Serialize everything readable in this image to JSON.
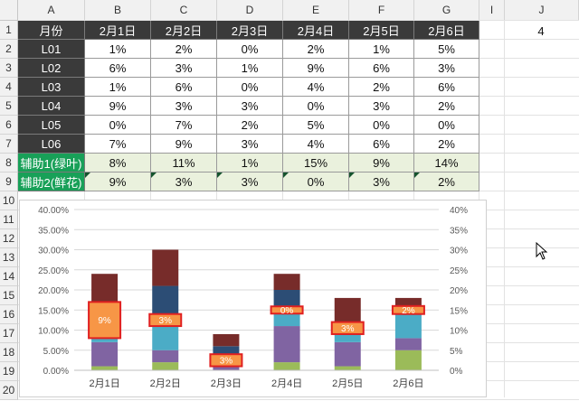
{
  "columns": [
    "A",
    "B",
    "C",
    "D",
    "E",
    "F",
    "G",
    "I",
    "J"
  ],
  "rows": [
    "1",
    "2",
    "3",
    "4",
    "5",
    "6",
    "7",
    "8",
    "9",
    "10",
    "11",
    "12",
    "13",
    "14",
    "15",
    "16",
    "17",
    "18",
    "19",
    "20"
  ],
  "table": {
    "header": [
      "月份",
      "2月1日",
      "2月2日",
      "2月3日",
      "2月4日",
      "2月5日",
      "2月6日"
    ],
    "data_rows": [
      [
        "L01",
        "1%",
        "2%",
        "0%",
        "2%",
        "1%",
        "5%"
      ],
      [
        "L02",
        "6%",
        "3%",
        "1%",
        "9%",
        "6%",
        "3%"
      ],
      [
        "L03",
        "1%",
        "6%",
        "0%",
        "4%",
        "2%",
        "6%"
      ],
      [
        "L04",
        "9%",
        "3%",
        "3%",
        "0%",
        "3%",
        "2%"
      ],
      [
        "L05",
        "0%",
        "7%",
        "2%",
        "5%",
        "0%",
        "0%"
      ],
      [
        "L06",
        "7%",
        "9%",
        "3%",
        "4%",
        "6%",
        "2%"
      ]
    ],
    "helper_rows": [
      [
        "辅助1(绿叶)",
        "8%",
        "11%",
        "1%",
        "15%",
        "9%",
        "14%"
      ],
      [
        "辅助2(鲜花)",
        "9%",
        "3%",
        "3%",
        "0%",
        "3%",
        "2%"
      ]
    ]
  },
  "j1_value": "4",
  "colors": {
    "L01": "#9bbb59",
    "L02": "#8064a2",
    "L03": "#4bacc6",
    "L04": "#1f497d",
    "L05": "#2c4d75",
    "L06": "#772c2a",
    "highlight_fill": "#f79646",
    "highlight_border": "#e02020",
    "header_bg": "#3a3a3a",
    "helper_label_bg": "#18a058",
    "helper_bg": "#eaf1dd"
  },
  "chart_data": {
    "type": "bar",
    "stacked": true,
    "categories": [
      "2月1日",
      "2月2日",
      "2月3日",
      "2月4日",
      "2月5日",
      "2月6日"
    ],
    "series": [
      {
        "name": "L01",
        "values": [
          1,
          2,
          0,
          2,
          1,
          5
        ]
      },
      {
        "name": "L02",
        "values": [
          6,
          3,
          1,
          9,
          6,
          3
        ]
      },
      {
        "name": "L03",
        "values": [
          1,
          6,
          0,
          4,
          2,
          6
        ]
      },
      {
        "name": "L04",
        "values": [
          9,
          3,
          3,
          0,
          3,
          2
        ]
      },
      {
        "name": "L05",
        "values": [
          0,
          7,
          2,
          5,
          0,
          0
        ]
      },
      {
        "name": "L06",
        "values": [
          7,
          9,
          3,
          4,
          6,
          2
        ]
      }
    ],
    "highlight_series": {
      "values": [
        9,
        3,
        3,
        0,
        3,
        2
      ],
      "labels": [
        "9%",
        "3%",
        "3%",
        "0%",
        "3%",
        "2%"
      ]
    },
    "highlight_base": [
      8,
      11,
      1,
      15,
      9,
      14
    ],
    "ylim": [
      0,
      40
    ],
    "left_ticks": [
      "0.00%",
      "5.00%",
      "10.00%",
      "15.00%",
      "20.00%",
      "25.00%",
      "30.00%",
      "35.00%",
      "40.00%"
    ],
    "right_ticks": [
      "0%",
      "5%",
      "10%",
      "15%",
      "20%",
      "25%",
      "30%",
      "35%",
      "40%"
    ],
    "grid": true,
    "legend": "none"
  }
}
